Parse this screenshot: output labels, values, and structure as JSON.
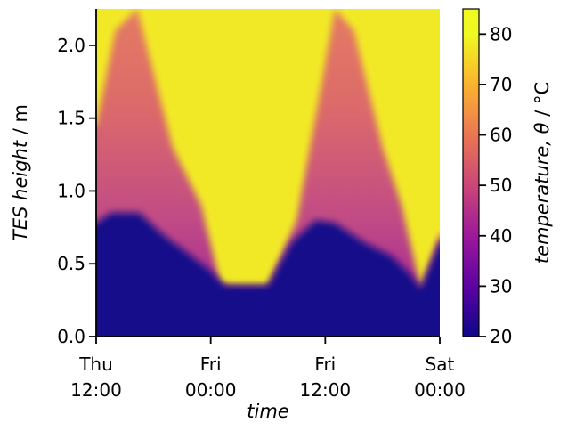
{
  "chart_data": {
    "type": "heatmap",
    "xlabel": "time",
    "ylabel_main": "TES height",
    "ylabel_unit": " / m",
    "colorbar_label_main": "temperature,  θ",
    "colorbar_label_unit": "  / °C",
    "colormap": "plasma",
    "x_ticks": [
      {
        "value": 0,
        "line1": "Thu",
        "line2": "12:00"
      },
      {
        "value": 12,
        "line1": "Fri",
        "line2": "00:00"
      },
      {
        "value": 24,
        "line1": "Fri",
        "line2": "12:00"
      },
      {
        "value": 36,
        "line1": "Sat",
        "line2": "00:00"
      }
    ],
    "x_range_hours": [
      0,
      36
    ],
    "y_ticks": [
      "0.0",
      "0.5",
      "1.0",
      "1.5",
      "2.0"
    ],
    "y_range": [
      0,
      2.25
    ],
    "color_ticks": [
      "20",
      "30",
      "40",
      "50",
      "60",
      "70",
      "80"
    ],
    "color_range": [
      20,
      85
    ],
    "hot_zone_boundary": [
      {
        "t": 0,
        "h": 1.45
      },
      {
        "t": 2,
        "h": 2.1
      },
      {
        "t": 4.3,
        "h": 2.25
      },
      {
        "t": 8,
        "h": 1.3
      },
      {
        "t": 11,
        "h": 0.9
      },
      {
        "t": 13,
        "h": 0.36
      },
      {
        "t": 14.5,
        "h": 0.35
      },
      {
        "t": 18,
        "h": 0.35
      },
      {
        "t": 21,
        "h": 0.8
      },
      {
        "t": 23.5,
        "h": 1.7
      },
      {
        "t": 25,
        "h": 2.25
      },
      {
        "t": 27,
        "h": 2.1
      },
      {
        "t": 30,
        "h": 1.3
      },
      {
        "t": 32,
        "h": 0.9
      },
      {
        "t": 34,
        "h": 0.33
      },
      {
        "t": 36,
        "h": 0.7
      }
    ],
    "cold_layer_top": [
      {
        "t": 0,
        "h": 0.78
      },
      {
        "t": 1.5,
        "h": 0.85
      },
      {
        "t": 4.5,
        "h": 0.85
      },
      {
        "t": 7,
        "h": 0.7
      },
      {
        "t": 10,
        "h": 0.55
      },
      {
        "t": 12,
        "h": 0.45
      },
      {
        "t": 13.5,
        "h": 0.35
      },
      {
        "t": 18,
        "h": 0.35
      },
      {
        "t": 20.5,
        "h": 0.65
      },
      {
        "t": 23,
        "h": 0.8
      },
      {
        "t": 25,
        "h": 0.78
      },
      {
        "t": 28,
        "h": 0.65
      },
      {
        "t": 31,
        "h": 0.55
      },
      {
        "t": 33,
        "h": 0.42
      },
      {
        "t": 34,
        "h": 0.33
      },
      {
        "t": 36,
        "h": 0.65
      }
    ]
  }
}
